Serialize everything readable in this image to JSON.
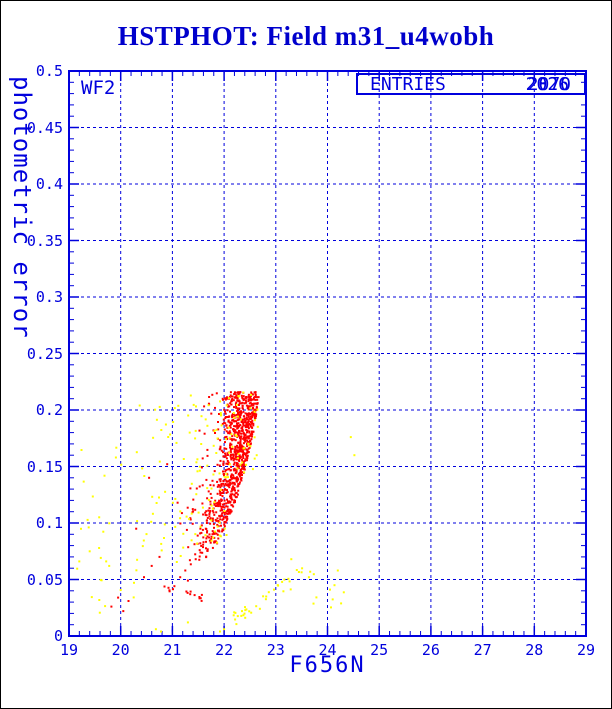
{
  "header": {
    "title": "HSTPHOT: Field m31_u4wobh"
  },
  "plot": {
    "chip": "WF2",
    "entries_label": "ENTRIES",
    "entries_values": [
      "2070",
      "2026"
    ]
  },
  "colors": {
    "axis_blue": "#0000dd",
    "title_blue": "#0000cc",
    "series_red": "#ff0000",
    "series_yellow": "#ffff00",
    "frame_black": "#000000",
    "background": "#ffffff"
  },
  "chart_data": {
    "type": "scatter",
    "title": "HSTPHOT: Field m31_u4wobh",
    "xlabel": "F656N",
    "ylabel": "photometric error",
    "xlim": [
      19,
      29
    ],
    "ylim": [
      0,
      0.5
    ],
    "x_major_tick": 1,
    "x_minor_tick": 0.2,
    "y_major_tick": 0.05,
    "y_minor_tick": 0.01,
    "grid": "dashed-at-major-ticks",
    "legend": "none",
    "x_tick_labels": [
      "19",
      "20",
      "21",
      "22",
      "23",
      "24",
      "25",
      "26",
      "27",
      "28",
      "29"
    ],
    "y_tick_labels": [
      "0",
      "0.05",
      "0.1",
      "0.15",
      "0.2",
      "0.25",
      "0.3",
      "0.35",
      "0.4",
      "0.45",
      "0.5"
    ],
    "series": [
      {
        "name": "red-points",
        "color": "#ff0000",
        "marker_px": 2,
        "ridge": {
          "rows": [
            [
              0.062,
              21.28,
              21.5
            ],
            [
              0.08,
              21.4,
              21.85
            ],
            [
              0.1,
              21.55,
              22.05
            ],
            [
              0.12,
              21.75,
              22.25
            ],
            [
              0.15,
              21.95,
              22.42
            ],
            [
              0.18,
              22.02,
              22.57
            ],
            [
              0.2,
              22.03,
              22.65
            ],
            [
              0.216,
              21.98,
              22.68
            ]
          ],
          "n": 880,
          "y_bias": 0.55,
          "x_bias": 0.7
        },
        "halo": {
          "dx": 0.5,
          "y0": 0.075,
          "y1": 0.215,
          "n": 70
        },
        "clusters": [
          {
            "type": "line",
            "x0": 20.8,
            "x1": 21.62,
            "ya": 0.045,
            "yb": 0.032,
            "jitter": 0.004,
            "n": 16
          }
        ],
        "points": [
          [
            19.82,
            0.026
          ],
          [
            20.05,
            0.022
          ],
          [
            20.15,
            0.031
          ],
          [
            19.95,
            0.034
          ],
          [
            20.6,
            0.062
          ],
          [
            20.75,
            0.07
          ],
          [
            20.3,
            0.095
          ],
          [
            20.55,
            0.14
          ],
          [
            20.9,
            0.152
          ],
          [
            21.1,
            0.118
          ],
          [
            21.25,
            0.058
          ],
          [
            21.15,
            0.052
          ],
          [
            21.3,
            0.049
          ],
          [
            21.45,
            0.068
          ],
          [
            20.45,
            0.052
          ]
        ]
      },
      {
        "name": "yellow-points",
        "color": "#ffff00",
        "marker_px": 2,
        "clusters": [
          {
            "type": "rect",
            "x0": 19.15,
            "x1": 20.3,
            "y0": 0.02,
            "y1": 0.17,
            "n": 26
          },
          {
            "type": "rect",
            "x0": 20.3,
            "x1": 21.3,
            "y0": 0.05,
            "y1": 0.205,
            "n": 44
          },
          {
            "type": "rect",
            "x0": 21.3,
            "x1": 22.05,
            "y0": 0.08,
            "y1": 0.215,
            "n": 64
          },
          {
            "type": "rect",
            "x0": 22.0,
            "x1": 22.66,
            "y0": 0.14,
            "y1": 0.216,
            "n": 42
          },
          {
            "type": "line",
            "x0": 22.15,
            "x1": 23.75,
            "ya": 0.013,
            "yb": 0.062,
            "jitter": 0.007,
            "n": 36
          },
          {
            "type": "rect",
            "x0": 23.4,
            "x1": 24.45,
            "y0": 0.025,
            "y1": 0.062,
            "n": 10
          }
        ],
        "points": [
          [
            24.45,
            0.176
          ],
          [
            24.52,
            0.16
          ],
          [
            20.68,
            0.006
          ],
          [
            20.78,
            0.004
          ],
          [
            21.92,
            0.004
          ],
          [
            22.0,
            0.006
          ],
          [
            21.3,
            0.012
          ],
          [
            19.2,
            0.066
          ],
          [
            19.4,
            0.075
          ],
          [
            19.72,
            0.066
          ],
          [
            23.3,
            0.068
          ],
          [
            24.2,
            0.058
          ]
        ]
      }
    ]
  }
}
